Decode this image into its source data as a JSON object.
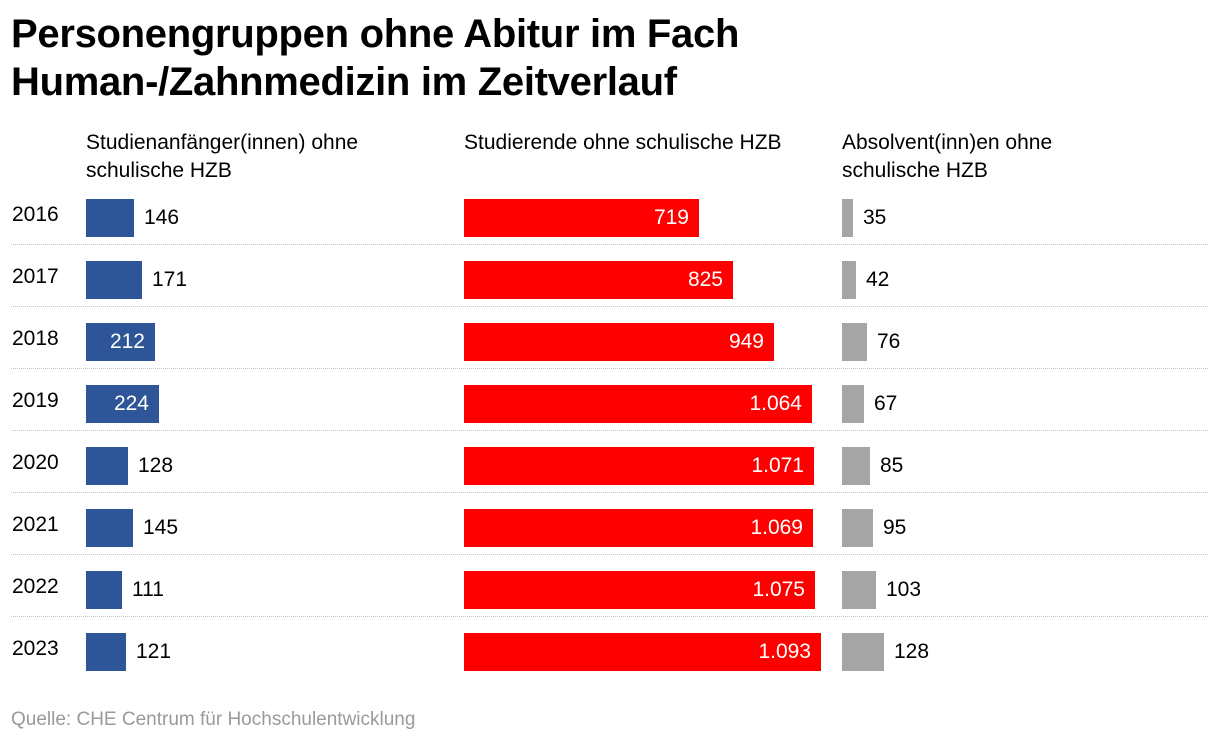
{
  "title": "Personengruppen ohne Abitur im Fach Human-/Zahnmedizin im Zeitverlauf",
  "source": "Quelle: CHE Centrum für Hochschulentwicklung",
  "chart_data": {
    "type": "bar",
    "orientation": "horizontal",
    "title": "Personengruppen ohne Abitur im Fach Human-/Zahnmedizin im Zeitverlauf",
    "categories": [
      "2016",
      "2017",
      "2018",
      "2019",
      "2020",
      "2021",
      "2022",
      "2023"
    ],
    "series": [
      {
        "name": "Studienanfänger(innen) ohne schulische HZB",
        "color": "#2e5597",
        "values": [
          146,
          171,
          212,
          224,
          128,
          145,
          111,
          121
        ],
        "labels": [
          "146",
          "171",
          "212",
          "224",
          "128",
          "145",
          "111",
          "121"
        ]
      },
      {
        "name": "Studierende ohne schulische HZB",
        "color": "#ff0000",
        "values": [
          719,
          825,
          949,
          1064,
          1071,
          1069,
          1075,
          1093
        ],
        "labels": [
          "719",
          "825",
          "949",
          "1.064",
          "1.071",
          "1.069",
          "1.075",
          "1.093"
        ]
      },
      {
        "name": "Absolvent(inn)en ohne schulische HZB",
        "color": "#a5a5a5",
        "values": [
          35,
          42,
          76,
          67,
          85,
          95,
          103,
          128
        ],
        "labels": [
          "35",
          "42",
          "76",
          "67",
          "85",
          "95",
          "103",
          "128"
        ]
      }
    ]
  }
}
